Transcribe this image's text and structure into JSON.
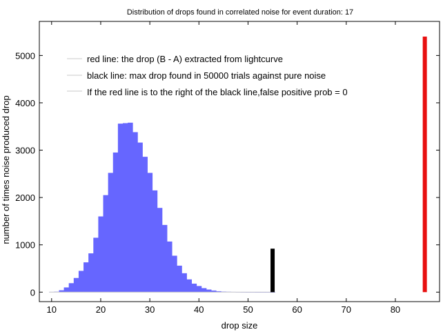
{
  "chart_data": {
    "type": "bar",
    "title": "Distribution of drops found in correlated noise for event duration: 17",
    "xlabel": "drop size",
    "ylabel": "number of times noise produced drop",
    "xlim": [
      7.5,
      89
    ],
    "ylim": [
      -200,
      5720
    ],
    "xticks": [
      10,
      20,
      30,
      40,
      50,
      60,
      70,
      80
    ],
    "yticks": [
      0,
      1000,
      2000,
      3000,
      4000,
      5000
    ],
    "grid": false,
    "legend_position": "top-left",
    "histogram": {
      "color": "#6666ff",
      "bin_width": 1,
      "x": [
        10,
        11,
        12,
        13,
        14,
        15,
        16,
        17,
        18,
        19,
        20,
        21,
        22,
        23,
        24,
        25,
        26,
        27,
        28,
        29,
        30,
        31,
        32,
        33,
        34,
        35,
        36,
        37,
        38,
        39,
        40,
        41,
        42,
        43,
        44,
        45,
        46,
        47,
        48,
        49,
        50,
        51,
        52,
        53,
        54,
        55
      ],
      "values": [
        5,
        10,
        40,
        100,
        190,
        300,
        450,
        630,
        820,
        1150,
        1600,
        2050,
        2520,
        2950,
        3560,
        3570,
        3580,
        3380,
        3160,
        2860,
        2520,
        2150,
        1780,
        1420,
        1070,
        770,
        560,
        400,
        270,
        180,
        130,
        85,
        55,
        35,
        20,
        12,
        8,
        5,
        3,
        2,
        1,
        1,
        0,
        0,
        0,
        0
      ]
    },
    "series": [
      {
        "name": "red line: the drop (B - A) extracted from lightcurve",
        "x": 86,
        "y_range": [
          0,
          5400
        ],
        "color": "#e81010"
      },
      {
        "name": "black line: max drop found in 50000 trials against pure noise",
        "x": 55,
        "y_range": [
          0,
          920
        ],
        "color": "#000000"
      },
      {
        "name": "If the red line is to the right of the black line,false positive prob = 0",
        "color": "#c8c8c8"
      }
    ]
  }
}
